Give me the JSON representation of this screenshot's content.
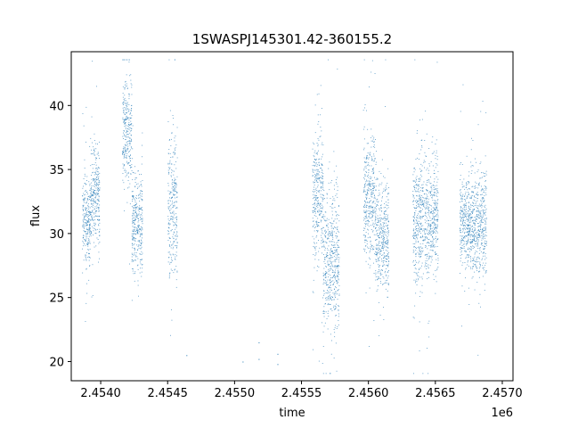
{
  "chart_data": {
    "type": "scatter",
    "title": "1SWASPJ145301.42-360155.2",
    "xlabel": "time",
    "ylabel": "flux",
    "x_offset_label": "1e6",
    "xlim": [
      2453780,
      2457080
    ],
    "ylim": [
      18.5,
      44.2
    ],
    "x_ticks": [
      2454000,
      2454500,
      2455000,
      2455500,
      2456000,
      2456500,
      2457000
    ],
    "x_tick_labels": [
      "2.4540",
      "2.4545",
      "2.4550",
      "2.4555",
      "2.4560",
      "2.4565",
      "2.4570"
    ],
    "y_ticks": [
      20,
      25,
      30,
      35,
      40
    ],
    "y_tick_labels": [
      "20",
      "25",
      "30",
      "35",
      "40"
    ],
    "grid": false,
    "marker_color": "#1f77b4",
    "series": [
      {
        "values_description_segments": [
          {
            "x_start": 2453860,
            "x_end": 2453920,
            "y_center": 31.0,
            "y_spread": 3.0
          },
          {
            "x_start": 2453920,
            "x_end": 2453990,
            "y_center": 33.0,
            "y_spread": 3.5
          },
          {
            "x_start": 2454160,
            "x_end": 2454230,
            "y_center": 38.0,
            "y_spread": 3.5
          },
          {
            "x_start": 2454230,
            "x_end": 2454310,
            "y_center": 31.0,
            "y_spread": 3.5
          },
          {
            "x_start": 2454500,
            "x_end": 2454570,
            "y_center": 32.0,
            "y_spread": 5.0
          },
          {
            "x_start": 2455580,
            "x_end": 2455660,
            "y_center": 33.0,
            "y_spread": 4.5
          },
          {
            "x_start": 2455660,
            "x_end": 2455780,
            "y_center": 28.0,
            "y_spread": 5.0
          },
          {
            "x_start": 2455960,
            "x_end": 2456050,
            "y_center": 33.0,
            "y_spread": 4.5
          },
          {
            "x_start": 2456050,
            "x_end": 2456150,
            "y_center": 30.0,
            "y_spread": 4.0
          },
          {
            "x_start": 2456330,
            "x_end": 2456450,
            "y_center": 31.0,
            "y_spread": 4.5
          },
          {
            "x_start": 2456450,
            "x_end": 2456520,
            "y_center": 31.5,
            "y_spread": 4.0
          },
          {
            "x_start": 2456680,
            "x_end": 2456760,
            "y_center": 31.0,
            "y_spread": 3.0
          },
          {
            "x_start": 2456760,
            "x_end": 2456880,
            "y_center": 31.0,
            "y_spread": 4.0
          }
        ]
      }
    ]
  }
}
